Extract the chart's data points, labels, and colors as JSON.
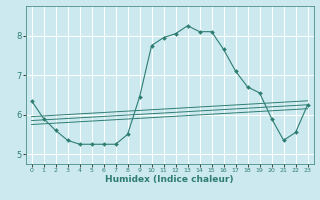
{
  "title": "",
  "xlabel": "Humidex (Indice chaleur)",
  "ylabel": "",
  "bg_color": "#cce9f0",
  "grid_color": "#ffffff",
  "line_color": "#2e7d72",
  "xlim": [
    -0.5,
    23.5
  ],
  "ylim": [
    4.75,
    8.75
  ],
  "xticks": [
    0,
    1,
    2,
    3,
    4,
    5,
    6,
    7,
    8,
    9,
    10,
    11,
    12,
    13,
    14,
    15,
    16,
    17,
    18,
    19,
    20,
    21,
    22,
    23
  ],
  "yticks": [
    5,
    6,
    7,
    8
  ],
  "series": [
    {
      "x": [
        0,
        1,
        2,
        3,
        4,
        5,
        6,
        7,
        8,
        9,
        10,
        11,
        12,
        13,
        14,
        15,
        16,
        17,
        18,
        19,
        20,
        21,
        22,
        23
      ],
      "y": [
        6.35,
        5.9,
        5.6,
        5.35,
        5.25,
        5.25,
        5.25,
        5.25,
        5.5,
        6.45,
        7.75,
        7.95,
        8.05,
        8.25,
        8.1,
        8.1,
        7.65,
        7.1,
        6.7,
        6.55,
        5.9,
        5.35,
        5.55,
        6.25
      ]
    },
    {
      "x": [
        0,
        23
      ],
      "y": [
        5.95,
        6.35
      ]
    },
    {
      "x": [
        0,
        23
      ],
      "y": [
        5.85,
        6.25
      ]
    },
    {
      "x": [
        0,
        23
      ],
      "y": [
        5.75,
        6.15
      ]
    }
  ]
}
